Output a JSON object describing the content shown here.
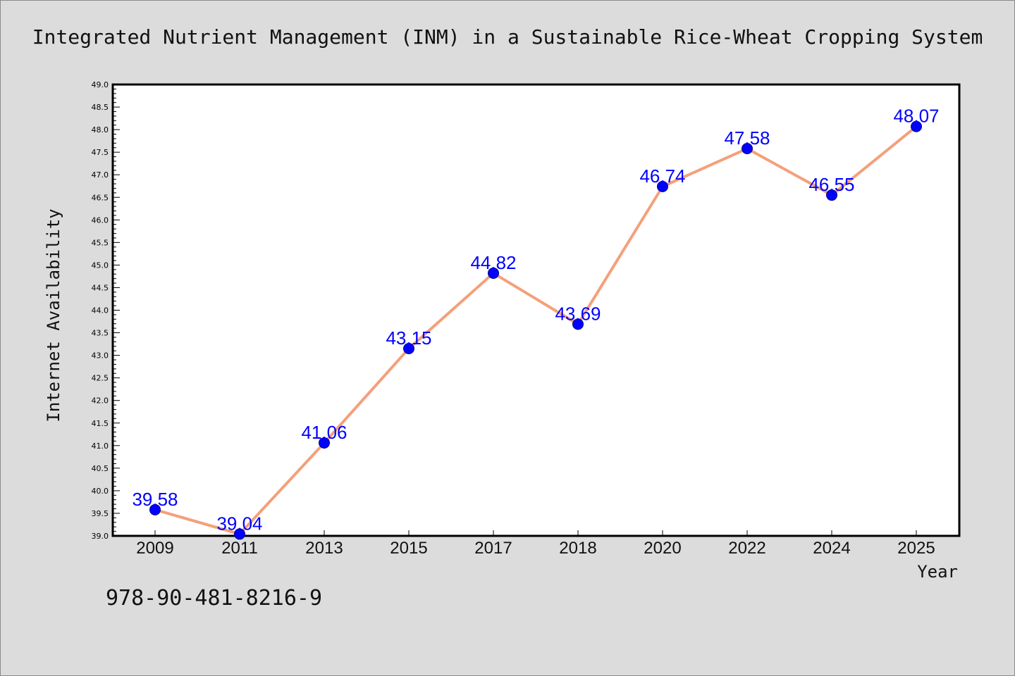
{
  "chart_data": {
    "type": "line",
    "title": "Integrated Nutrient Management (INM) in a Sustainable Rice-Wheat Cropping System",
    "xlabel": "Year",
    "ylabel": "Internet Availability",
    "categories": [
      "2009",
      "2011",
      "2013",
      "2015",
      "2017",
      "2018",
      "2020",
      "2022",
      "2024",
      "2025"
    ],
    "series": [
      {
        "values": [
          39.58,
          39.04,
          41.06,
          43.15,
          44.82,
          43.69,
          46.74,
          47.58,
          46.55,
          48.07
        ]
      }
    ],
    "data_labels": [
      "39.58",
      "39.04",
      "41.06",
      "43.15",
      "44.82",
      "43.69",
      "46.74",
      "47.58",
      "46.55",
      "48.07"
    ],
    "ylim": [
      39.0,
      49.0
    ],
    "y_ticks": [
      "39.0",
      "39.5",
      "40.0",
      "40.5",
      "41.0",
      "41.5",
      "42.0",
      "42.5",
      "43.0",
      "43.5",
      "44.0",
      "44.5",
      "45.0",
      "45.5",
      "46.0",
      "46.5",
      "47.0",
      "47.5",
      "48.0",
      "48.5",
      "49.0"
    ],
    "grid": false,
    "legend": "none",
    "colors": {
      "line": "#f4a07a",
      "marker": "#0000ff",
      "marker_edge": "#00008b",
      "label": "#0000ff",
      "background": "#dcdcdc",
      "plot_background": "#ffffff"
    }
  },
  "footer": {
    "isbn": "978-90-481-8216-9"
  }
}
